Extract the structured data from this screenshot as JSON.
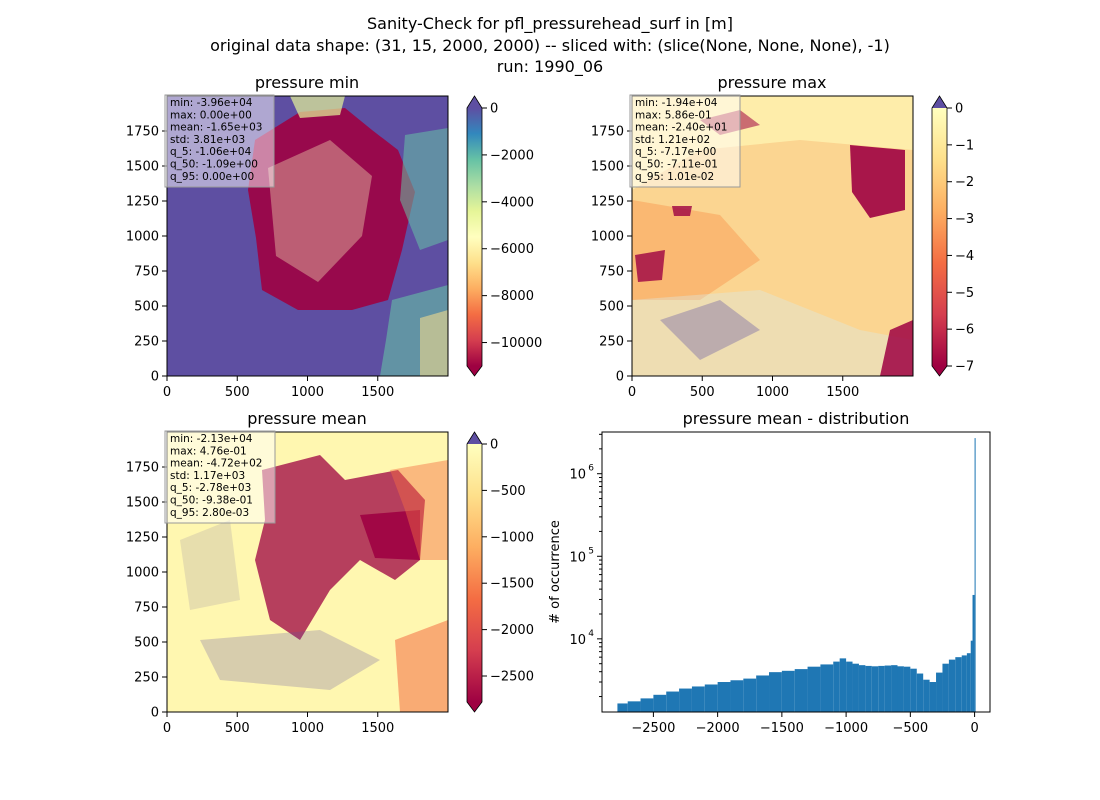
{
  "suptitle": [
    "Sanity-Check for pfl_pressurehead_surf in [m]",
    "original data shape: (31, 15, 2000, 2000) -- sliced with: (slice(None, None, None), -1)",
    "run: 1990_06"
  ],
  "colors": {
    "spectral": [
      "#9e0142",
      "#d53e4f",
      "#f46d43",
      "#fdae61",
      "#fee08b",
      "#ffffbf",
      "#e6f598",
      "#abdda4",
      "#66c2a5",
      "#3288bd",
      "#5e4fa2"
    ],
    "hist_bar": "#1f77b4",
    "axis": "#000000"
  },
  "chart_data": [
    {
      "type": "heatmap",
      "title": "pressure min",
      "xlim": [
        0,
        2000
      ],
      "ylim": [
        0,
        2000
      ],
      "x_ticks": [
        "0",
        "500",
        "1000",
        "1500"
      ],
      "y_ticks": [
        "0",
        "250",
        "500",
        "750",
        "1000",
        "1250",
        "1500",
        "1750"
      ],
      "colorbar": {
        "min": -11000,
        "max": 0,
        "extend": "both",
        "ticks": [
          "0",
          "−2000",
          "−4000",
          "−6000",
          "−8000",
          "−10000"
        ]
      },
      "stats": [
        "min: -3.96e+04",
        "max: 0.00e+00",
        "mean: -1.65e+03",
        "std: 3.81e+03",
        "q_5: -1.06e+04",
        "q_50: -1.09e+00",
        "q_95: 0.00e+00"
      ]
    },
    {
      "type": "heatmap",
      "title": "pressure max",
      "xlim": [
        0,
        2000
      ],
      "ylim": [
        0,
        2000
      ],
      "x_ticks": [
        "0",
        "500",
        "1000",
        "1500"
      ],
      "y_ticks": [
        "0",
        "250",
        "500",
        "750",
        "1000",
        "1250",
        "1500",
        "1750"
      ],
      "colorbar": {
        "min": -7,
        "max": 0,
        "extend": "both",
        "ticks": [
          "0",
          "−1",
          "−2",
          "−3",
          "−4",
          "−5",
          "−6",
          "−7"
        ]
      },
      "stats": [
        "min: -1.94e+04",
        "max: 5.86e-01",
        "mean: -2.40e+01",
        "std: 1.21e+02",
        "q_5: -7.17e+00",
        "q_50: -7.11e-01",
        "q_95: 1.01e-02"
      ]
    },
    {
      "type": "heatmap",
      "title": "pressure mean",
      "xlim": [
        0,
        2000
      ],
      "ylim": [
        0,
        2000
      ],
      "x_ticks": [
        "0",
        "500",
        "1000",
        "1500"
      ],
      "y_ticks": [
        "0",
        "250",
        "500",
        "750",
        "1000",
        "1250",
        "1500",
        "1750"
      ],
      "colorbar": {
        "min": -2780,
        "max": 0,
        "extend": "both",
        "ticks": [
          "0",
          "−500",
          "−1000",
          "−1500",
          "−2000",
          "−2500"
        ]
      },
      "stats": [
        "min: -2.13e+04",
        "max: 4.76e-01",
        "mean: -4.72e+02",
        "std: 1.17e+03",
        "q_5: -2.78e+03",
        "q_50: -9.38e-01",
        "q_95: 2.80e-03"
      ]
    },
    {
      "type": "bar",
      "title": "pressure mean - distribution",
      "ylabel": "# of occurrence",
      "yscale": "log",
      "xlim": [
        -2900,
        120
      ],
      "ylim": [
        1300,
        3200000
      ],
      "x_ticks": [
        "−2500",
        "−2000",
        "−1500",
        "−1000",
        "−500",
        "0"
      ],
      "y_ticks": [
        "10",
        "10",
        "10"
      ],
      "y_tick_exponents": [
        "4",
        "5",
        "6"
      ],
      "bin_width": 16,
      "x": [
        -2780,
        -2700,
        -2600,
        -2500,
        -2400,
        -2300,
        -2200,
        -2100,
        -2000,
        -1900,
        -1800,
        -1700,
        -1600,
        -1500,
        -1400,
        -1300,
        -1200,
        -1100,
        -1050,
        -1000,
        -950,
        -900,
        -850,
        -800,
        -750,
        -700,
        -650,
        -600,
        -550,
        -500,
        -450,
        -400,
        -350,
        -300,
        -250,
        -200,
        -150,
        -100,
        -60,
        -30,
        -16,
        0
      ],
      "y": [
        1650,
        1750,
        1900,
        2100,
        2300,
        2500,
        2650,
        2800,
        3000,
        3150,
        3300,
        3600,
        3950,
        4100,
        4300,
        4600,
        4900,
        5300,
        5800,
        5300,
        5000,
        4800,
        4700,
        4650,
        4700,
        4750,
        4800,
        4650,
        4600,
        4350,
        3800,
        3200,
        3000,
        3900,
        5000,
        5600,
        6000,
        6300,
        6700,
        9500,
        34000,
        2700000
      ]
    }
  ]
}
